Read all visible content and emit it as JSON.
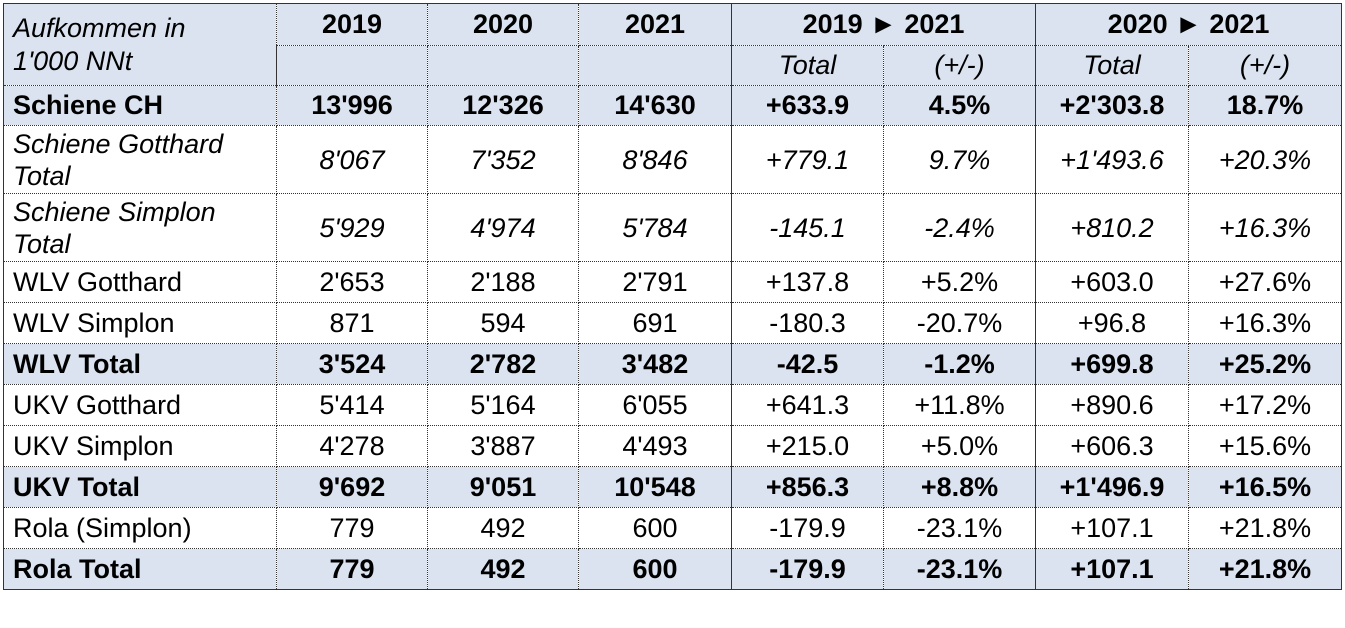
{
  "header": {
    "title_line1": "Aufkommen in",
    "title_line2": "1'000 NNt",
    "year_2019": "2019",
    "year_2020": "2020",
    "year_2021": "2021",
    "group_a": "2019 ► 2021",
    "group_b": "2020 ► 2021",
    "sub_total_a": "Total",
    "sub_pct_a": "(+/-)",
    "sub_total_b": "Total",
    "sub_pct_b": "(+/-)"
  },
  "rows": [
    {
      "label": "Schiene CH",
      "v2019": "13'996",
      "v2020": "12'326",
      "v2021": "14'630",
      "tot_a": "+633.9",
      "pct_a": "4.5%",
      "tot_b": "+2'303.8",
      "pct_b": "18.7%"
    },
    {
      "label": "Schiene Gotthard Total",
      "v2019": "8'067",
      "v2020": "7'352",
      "v2021": "8'846",
      "tot_a": "+779.1",
      "pct_a": "9.7%",
      "tot_b": "+1'493.6",
      "pct_b": "+20.3%"
    },
    {
      "label": "Schiene Simplon Total",
      "v2019": "5'929",
      "v2020": "4'974",
      "v2021": "5'784",
      "tot_a": "-145.1",
      "pct_a": "-2.4%",
      "tot_b": "+810.2",
      "pct_b": "+16.3%"
    },
    {
      "label": "WLV Gotthard",
      "v2019": "2'653",
      "v2020": "2'188",
      "v2021": "2'791",
      "tot_a": "+137.8",
      "pct_a": "+5.2%",
      "tot_b": "+603.0",
      "pct_b": "+27.6%"
    },
    {
      "label": "WLV Simplon",
      "v2019": "871",
      "v2020": "594",
      "v2021": "691",
      "tot_a": "-180.3",
      "pct_a": "-20.7%",
      "tot_b": "+96.8",
      "pct_b": "+16.3%"
    },
    {
      "label": "WLV Total",
      "v2019": "3'524",
      "v2020": "2'782",
      "v2021": "3'482",
      "tot_a": "-42.5",
      "pct_a": "-1.2%",
      "tot_b": "+699.8",
      "pct_b": "+25.2%"
    },
    {
      "label": "UKV Gotthard",
      "v2019": "5'414",
      "v2020": "5'164",
      "v2021": "6'055",
      "tot_a": "+641.3",
      "pct_a": "+11.8%",
      "tot_b": "+890.6",
      "pct_b": "+17.2%"
    },
    {
      "label": "UKV Simplon",
      "v2019": "4'278",
      "v2020": "3'887",
      "v2021": "4'493",
      "tot_a": "+215.0",
      "pct_a": "+5.0%",
      "tot_b": "+606.3",
      "pct_b": "+15.6%"
    },
    {
      "label": "UKV Total",
      "v2019": "9'692",
      "v2020": "9'051",
      "v2021": "10'548",
      "tot_a": "+856.3",
      "pct_a": "+8.8%",
      "tot_b": "+1'496.9",
      "pct_b": "+16.5%"
    },
    {
      "label": "Rola (Simplon)",
      "v2019": "779",
      "v2020": "492",
      "v2021": "600",
      "tot_a": "-179.9",
      "pct_a": "-23.1%",
      "tot_b": "+107.1",
      "pct_b": "+21.8%"
    },
    {
      "label": "Rola Total",
      "v2019": "779",
      "v2020": "492",
      "v2021": "600",
      "tot_a": "-179.9",
      "pct_a": "-23.1%",
      "tot_b": "+107.1",
      "pct_b": "+21.8%"
    }
  ],
  "colors": {
    "header_shade": "#dbe3f0",
    "total_shade": "#dbe3f0"
  }
}
